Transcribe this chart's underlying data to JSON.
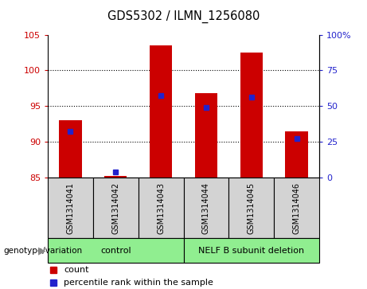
{
  "title": "GDS5302 / ILMN_1256080",
  "samples": [
    "GSM1314041",
    "GSM1314042",
    "GSM1314043",
    "GSM1314044",
    "GSM1314045",
    "GSM1314046"
  ],
  "count_values": [
    93.0,
    85.3,
    103.5,
    96.8,
    102.5,
    91.5
  ],
  "percentile_values": [
    91.5,
    85.8,
    96.5,
    94.8,
    96.3,
    90.5
  ],
  "ylim_left": [
    85,
    105
  ],
  "ylim_right": [
    0,
    100
  ],
  "yticks_left": [
    85,
    90,
    95,
    100,
    105
  ],
  "yticks_right": [
    0,
    25,
    50,
    75,
    100
  ],
  "ytick_labels_right": [
    "0",
    "25",
    "50",
    "75",
    "100%"
  ],
  "bar_color": "#cc0000",
  "percentile_color": "#2222cc",
  "grid_yticks": [
    90,
    95,
    100
  ],
  "control_label": "control",
  "nelf_label": "NELF B subunit deletion",
  "group_bg_color": "#90ee90",
  "sample_bg_color": "#d3d3d3",
  "bar_width": 0.5,
  "count_legend": "count",
  "pct_legend": "percentile rank within the sample",
  "geno_label": "genotype/variation"
}
